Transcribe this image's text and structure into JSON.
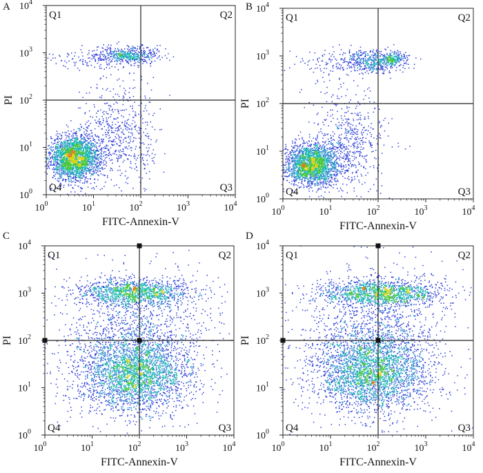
{
  "figure": {
    "panels": [
      "A",
      "B",
      "C",
      "D"
    ]
  },
  "colors": {
    "axis": "#222222",
    "background": "#ffffff",
    "density": [
      "#2a3bd6",
      "#2f8fd0",
      "#18b8b0",
      "#49c641",
      "#d8d21a",
      "#e07a1a"
    ]
  },
  "chart_data": [
    {
      "type": "scatter",
      "panel_label": "A",
      "xlabel": "FITC-Annexin-V",
      "ylabel": "PI",
      "xscale": "log",
      "yscale": "log",
      "xlim": [
        1,
        10000
      ],
      "ylim": [
        1,
        10000
      ],
      "x_ticks": [
        {
          "base": "10",
          "exp": "0"
        },
        {
          "base": "10",
          "exp": "1"
        },
        {
          "base": "10",
          "exp": "2"
        },
        {
          "base": "10",
          "exp": "3"
        },
        {
          "base": "10",
          "exp": "4"
        }
      ],
      "y_ticks": [
        {
          "base": "10",
          "exp": "0"
        },
        {
          "base": "10",
          "exp": "1"
        },
        {
          "base": "10",
          "exp": "2"
        },
        {
          "base": "10",
          "exp": "3"
        },
        {
          "base": "10",
          "exp": "4"
        }
      ],
      "gate": {
        "x": 100,
        "y": 100
      },
      "quadrants": {
        "Q1": "Q1",
        "Q2": "Q2",
        "Q3": "Q3",
        "Q4": "Q4"
      },
      "populations": [
        {
          "x_log": 0.6,
          "y_log": 0.78,
          "sx": 0.26,
          "sy": 0.24,
          "n": 2300
        },
        {
          "x_log": 1.75,
          "y_log": 2.95,
          "sx": 0.32,
          "sy": 0.09,
          "n": 480
        },
        {
          "x_log": 0.95,
          "y_log": 2.88,
          "sx": 0.5,
          "sy": 0.12,
          "n": 120
        },
        {
          "x_log": 1.45,
          "y_log": 1.3,
          "sx": 0.38,
          "sy": 0.55,
          "n": 520
        },
        {
          "x_log": 2.05,
          "y_log": 1.0,
          "sx": 0.18,
          "sy": 0.5,
          "n": 90
        }
      ]
    },
    {
      "type": "scatter",
      "panel_label": "B",
      "xlabel": "FITC-Annexin-V",
      "ylabel": "PI",
      "xscale": "log",
      "yscale": "log",
      "xlim": [
        1,
        10000
      ],
      "ylim": [
        1,
        10000
      ],
      "x_ticks": [
        {
          "base": "10",
          "exp": "0"
        },
        {
          "base": "10",
          "exp": "1"
        },
        {
          "base": "10",
          "exp": "2"
        },
        {
          "base": "10",
          "exp": "3"
        },
        {
          "base": "10",
          "exp": "4"
        }
      ],
      "y_ticks": [
        {
          "base": "10",
          "exp": "0"
        },
        {
          "base": "10",
          "exp": "1"
        },
        {
          "base": "10",
          "exp": "2"
        },
        {
          "base": "10",
          "exp": "3"
        },
        {
          "base": "10",
          "exp": "4"
        }
      ],
      "gate": {
        "x": 100,
        "y": 100
      },
      "quadrants": {
        "Q1": "Q1",
        "Q2": "Q2",
        "Q3": "Q3",
        "Q4": "Q4"
      },
      "populations": [
        {
          "x_log": 0.62,
          "y_log": 0.72,
          "sx": 0.28,
          "sy": 0.22,
          "n": 2100
        },
        {
          "x_log": 1.9,
          "y_log": 2.88,
          "sx": 0.35,
          "sy": 0.12,
          "n": 520
        },
        {
          "x_log": 2.3,
          "y_log": 2.95,
          "sx": 0.12,
          "sy": 0.06,
          "n": 140
        },
        {
          "x_log": 1.4,
          "y_log": 1.2,
          "sx": 0.4,
          "sy": 0.55,
          "n": 560
        },
        {
          "x_log": 1.0,
          "y_log": 2.85,
          "sx": 0.45,
          "sy": 0.15,
          "n": 100
        }
      ]
    },
    {
      "type": "scatter",
      "panel_label": "C",
      "xlabel": "FITC-Annexin-V",
      "ylabel": "PI",
      "xscale": "log",
      "yscale": "log",
      "xlim": [
        1,
        10000
      ],
      "ylim": [
        1,
        10000
      ],
      "x_ticks": [
        {
          "base": "10",
          "exp": "0"
        },
        {
          "base": "10",
          "exp": "1"
        },
        {
          "base": "10",
          "exp": "2"
        },
        {
          "base": "10",
          "exp": "3"
        },
        {
          "base": "10",
          "exp": "4"
        }
      ],
      "y_ticks": [
        {
          "base": "10",
          "exp": "0"
        },
        {
          "base": "10",
          "exp": "1"
        },
        {
          "base": "10",
          "exp": "2"
        },
        {
          "base": "10",
          "exp": "3"
        },
        {
          "base": "10",
          "exp": "4"
        }
      ],
      "gate": {
        "x": 100,
        "y": 100
      },
      "quadrants": {
        "Q1": "Q1",
        "Q2": "Q2",
        "Q3": "Q3",
        "Q4": "Q4"
      },
      "populations": [
        {
          "x_log": 1.9,
          "y_log": 1.25,
          "sx": 0.62,
          "sy": 0.4,
          "n": 2600
        },
        {
          "x_log": 1.9,
          "y_log": 3.02,
          "sx": 0.62,
          "sy": 0.14,
          "n": 1250
        },
        {
          "x_log": 1.9,
          "y_log": 2.1,
          "sx": 0.7,
          "sy": 0.55,
          "n": 900
        },
        {
          "x_log": 2.0,
          "y_log": 2.0,
          "sx": 1.2,
          "sy": 1.1,
          "n": 400
        }
      ]
    },
    {
      "type": "scatter",
      "panel_label": "D",
      "xlabel": "FITC-Annexin-V",
      "ylabel": "PI",
      "xscale": "log",
      "yscale": "log",
      "xlim": [
        1,
        10000
      ],
      "ylim": [
        1,
        10000
      ],
      "x_ticks": [
        {
          "base": "10",
          "exp": "0"
        },
        {
          "base": "10",
          "exp": "1"
        },
        {
          "base": "10",
          "exp": "2"
        },
        {
          "base": "10",
          "exp": "3"
        },
        {
          "base": "10",
          "exp": "4"
        }
      ],
      "y_ticks": [
        {
          "base": "10",
          "exp": "0"
        },
        {
          "base": "10",
          "exp": "1"
        },
        {
          "base": "10",
          "exp": "2"
        },
        {
          "base": "10",
          "exp": "3"
        },
        {
          "base": "10",
          "exp": "4"
        }
      ],
      "gate": {
        "x": 100,
        "y": 100
      },
      "quadrants": {
        "Q1": "Q1",
        "Q2": "Q2",
        "Q3": "Q3",
        "Q4": "Q4"
      },
      "populations": [
        {
          "x_log": 1.85,
          "y_log": 1.3,
          "sx": 0.6,
          "sy": 0.42,
          "n": 2600
        },
        {
          "x_log": 2.05,
          "y_log": 3.0,
          "sx": 0.65,
          "sy": 0.14,
          "n": 1350
        },
        {
          "x_log": 1.9,
          "y_log": 2.15,
          "sx": 0.7,
          "sy": 0.55,
          "n": 900
        },
        {
          "x_log": 2.0,
          "y_log": 2.0,
          "sx": 1.2,
          "sy": 1.1,
          "n": 400
        }
      ]
    }
  ]
}
